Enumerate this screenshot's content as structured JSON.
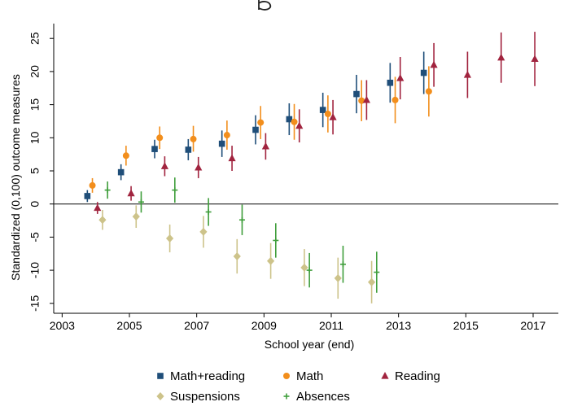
{
  "chart_data": {
    "type": "scatter",
    "title": "",
    "xlabel": "School year (end)",
    "ylabel": "Standardized (0,100) outcome measures",
    "xlim": [
      2002.75,
      2017.75
    ],
    "ylim": [
      -16.5,
      26.5
    ],
    "x_ticks": [
      "2003",
      "2005",
      "2007",
      "2009",
      "2011",
      "2013",
      "2015",
      "2017"
    ],
    "y_ticks": [
      "25",
      "20",
      "15",
      "10",
      "5",
      "0",
      "-5",
      "-10",
      "-15"
    ],
    "reference_line_y": 0,
    "grid": false,
    "legend_position": "bottom",
    "series": [
      {
        "name": "Math+reading",
        "color": "#1f4e79",
        "marker": "square",
        "points": [
          {
            "x": 2003.75,
            "y": 1.2,
            "lo": 0.3,
            "hi": 2.1
          },
          {
            "x": 2004.75,
            "y": 4.8,
            "lo": 3.6,
            "hi": 6.0
          },
          {
            "x": 2005.75,
            "y": 8.3,
            "lo": 6.9,
            "hi": 9.7
          },
          {
            "x": 2006.75,
            "y": 8.2,
            "lo": 6.6,
            "hi": 9.8
          },
          {
            "x": 2007.75,
            "y": 9.1,
            "lo": 7.1,
            "hi": 11.1
          },
          {
            "x": 2008.75,
            "y": 11.2,
            "lo": 9.0,
            "hi": 13.4
          },
          {
            "x": 2009.75,
            "y": 12.8,
            "lo": 10.4,
            "hi": 15.2
          },
          {
            "x": 2010.75,
            "y": 14.2,
            "lo": 11.6,
            "hi": 16.8
          },
          {
            "x": 2011.75,
            "y": 16.6,
            "lo": 13.7,
            "hi": 19.5
          },
          {
            "x": 2012.75,
            "y": 18.3,
            "lo": 15.3,
            "hi": 21.3
          },
          {
            "x": 2013.75,
            "y": 19.8,
            "lo": 16.6,
            "hi": 23.0
          }
        ]
      },
      {
        "name": "Math",
        "color": "#f28e1c",
        "marker": "circle",
        "points": [
          {
            "x": 2003.9,
            "y": 2.8,
            "lo": 1.7,
            "hi": 3.9
          },
          {
            "x": 2004.9,
            "y": 7.3,
            "lo": 5.8,
            "hi": 8.8
          },
          {
            "x": 2005.9,
            "y": 10.0,
            "lo": 8.3,
            "hi": 11.7
          },
          {
            "x": 2006.9,
            "y": 9.8,
            "lo": 7.9,
            "hi": 11.8
          },
          {
            "x": 2007.9,
            "y": 10.4,
            "lo": 8.2,
            "hi": 12.6
          },
          {
            "x": 2008.9,
            "y": 12.3,
            "lo": 9.8,
            "hi": 14.8
          },
          {
            "x": 2009.9,
            "y": 12.4,
            "lo": 9.7,
            "hi": 15.1
          },
          {
            "x": 2010.9,
            "y": 13.6,
            "lo": 10.8,
            "hi": 16.4
          },
          {
            "x": 2011.9,
            "y": 15.6,
            "lo": 12.5,
            "hi": 18.7
          },
          {
            "x": 2012.9,
            "y": 15.7,
            "lo": 12.2,
            "hi": 19.2
          },
          {
            "x": 2013.9,
            "y": 17.0,
            "lo": 13.2,
            "hi": 20.8
          }
        ]
      },
      {
        "name": "Reading",
        "color": "#a1243f",
        "marker": "triangle",
        "points": [
          {
            "x": 2004.05,
            "y": -0.6,
            "lo": -1.5,
            "hi": 0.3
          },
          {
            "x": 2005.05,
            "y": 1.6,
            "lo": 0.5,
            "hi": 2.7
          },
          {
            "x": 2006.05,
            "y": 5.7,
            "lo": 4.2,
            "hi": 7.2
          },
          {
            "x": 2007.05,
            "y": 5.5,
            "lo": 3.9,
            "hi": 7.1
          },
          {
            "x": 2008.05,
            "y": 6.9,
            "lo": 5.0,
            "hi": 8.8
          },
          {
            "x": 2009.05,
            "y": 8.7,
            "lo": 6.7,
            "hi": 10.7
          },
          {
            "x": 2010.05,
            "y": 11.8,
            "lo": 9.3,
            "hi": 14.3
          },
          {
            "x": 2011.05,
            "y": 13.1,
            "lo": 10.5,
            "hi": 15.7
          },
          {
            "x": 2012.05,
            "y": 15.7,
            "lo": 12.7,
            "hi": 18.7
          },
          {
            "x": 2013.05,
            "y": 19.0,
            "lo": 15.8,
            "hi": 22.2
          },
          {
            "x": 2014.05,
            "y": 21.0,
            "lo": 17.7,
            "hi": 24.3
          },
          {
            "x": 2015.05,
            "y": 19.5,
            "lo": 16.0,
            "hi": 23.0
          },
          {
            "x": 2016.05,
            "y": 22.1,
            "lo": 18.3,
            "hi": 25.9
          },
          {
            "x": 2017.05,
            "y": 21.9,
            "lo": 17.8,
            "hi": 26.0
          }
        ]
      },
      {
        "name": "Suspensions",
        "color": "#cdc38a",
        "marker": "diamond",
        "points": [
          {
            "x": 2004.2,
            "y": -2.4,
            "lo": -3.9,
            "hi": -0.9
          },
          {
            "x": 2005.2,
            "y": -1.9,
            "lo": -3.6,
            "hi": -0.2
          },
          {
            "x": 2006.2,
            "y": -5.2,
            "lo": -7.3,
            "hi": -3.1
          },
          {
            "x": 2007.2,
            "y": -4.2,
            "lo": -6.6,
            "hi": -1.8
          },
          {
            "x": 2008.2,
            "y": -7.9,
            "lo": -10.5,
            "hi": -5.3
          },
          {
            "x": 2009.2,
            "y": -8.6,
            "lo": -11.3,
            "hi": -5.9
          },
          {
            "x": 2010.2,
            "y": -9.6,
            "lo": -12.4,
            "hi": -6.8
          },
          {
            "x": 2011.2,
            "y": -11.2,
            "lo": -14.3,
            "hi": -8.1
          },
          {
            "x": 2012.2,
            "y": -11.8,
            "lo": -15.0,
            "hi": -8.6
          }
        ]
      },
      {
        "name": "Absences",
        "color": "#3f9e3b",
        "marker": "plus",
        "points": [
          {
            "x": 2004.35,
            "y": 2.1,
            "lo": 0.8,
            "hi": 3.4
          },
          {
            "x": 2005.35,
            "y": 0.3,
            "lo": -1.3,
            "hi": 1.9
          },
          {
            "x": 2006.35,
            "y": 2.1,
            "lo": 0.2,
            "hi": 4.0
          },
          {
            "x": 2007.35,
            "y": -1.2,
            "lo": -3.3,
            "hi": 0.9
          },
          {
            "x": 2008.35,
            "y": -2.4,
            "lo": -4.7,
            "hi": -0.1
          },
          {
            "x": 2009.35,
            "y": -5.5,
            "lo": -8.1,
            "hi": -2.9
          },
          {
            "x": 2010.35,
            "y": -10.0,
            "lo": -12.6,
            "hi": -7.4
          },
          {
            "x": 2011.35,
            "y": -9.1,
            "lo": -11.9,
            "hi": -6.3
          },
          {
            "x": 2012.35,
            "y": -10.3,
            "lo": -13.4,
            "hi": -7.2
          }
        ]
      }
    ]
  }
}
